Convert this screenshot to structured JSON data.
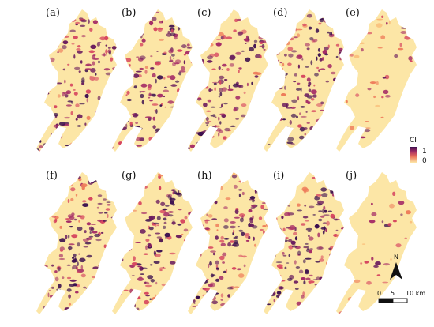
{
  "panels": [
    {
      "label": "(a)",
      "intensity": 0.55
    },
    {
      "label": "(b)",
      "intensity": 0.62
    },
    {
      "label": "(c)",
      "intensity": 0.58
    },
    {
      "label": "(d)",
      "intensity": 0.68
    },
    {
      "label": "(e)",
      "intensity": 0.12
    },
    {
      "label": "(f)",
      "intensity": 0.56
    },
    {
      "label": "(g)",
      "intensity": 0.6
    },
    {
      "label": "(h)",
      "intensity": 0.58
    },
    {
      "label": "(i)",
      "intensity": 0.7
    },
    {
      "label": "(j)",
      "intensity": 0.14
    }
  ],
  "legend": {
    "title": "CI",
    "max_label": "1",
    "min_label": "0",
    "colors": [
      "#3b0f4f",
      "#7b1f5e",
      "#c0396a",
      "#ea6f58",
      "#f9b46f",
      "#fde9a8"
    ]
  },
  "north_arrow": {
    "label": "N"
  },
  "scale_bar": {
    "tick_labels": [
      "0",
      "5",
      "10 km"
    ]
  }
}
